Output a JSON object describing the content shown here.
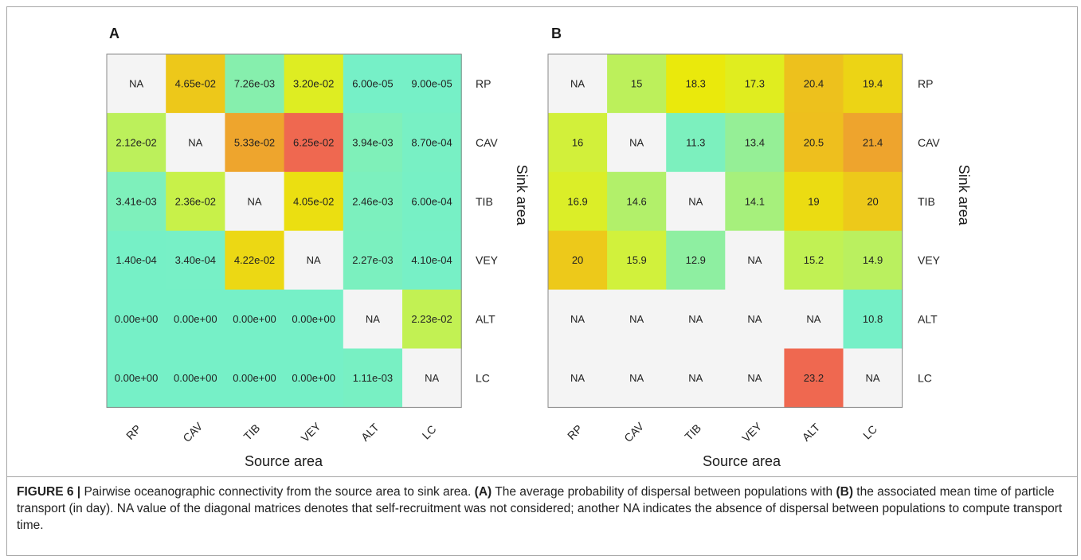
{
  "figure": {
    "caption": {
      "lead": "FIGURE 6 |",
      "t1": " Pairwise oceanographic connectivity from the source area to sink area. ",
      "b1": "(A)",
      "t2": " The average probability of dispersal between populations with ",
      "b2": "(B)",
      "t3": " the associated mean time of particle transport (in day). NA value of the diagonal matrices denotes that self-recruitment was not considered; another NA indicates the absence of dispersal between populations to compute transport time."
    }
  },
  "chart_data": [
    {
      "type": "heatmap",
      "panel": "A",
      "xlabel": "Source area",
      "ylabel": "Sink area",
      "columns": [
        "RP",
        "CAV",
        "TIB",
        "VEY",
        "ALT",
        "LC"
      ],
      "rows": [
        "RP",
        "CAV",
        "TIB",
        "VEY",
        "ALT",
        "LC"
      ],
      "labels": [
        [
          "NA",
          "4.65e-02",
          "7.26e-03",
          "3.20e-02",
          "6.00e-05",
          "9.00e-05"
        ],
        [
          "2.12e-02",
          "NA",
          "5.33e-02",
          "6.25e-02",
          "3.94e-03",
          "8.70e-04"
        ],
        [
          "3.41e-03",
          "2.36e-02",
          "NA",
          "4.05e-02",
          "2.46e-03",
          "6.00e-04"
        ],
        [
          "1.40e-04",
          "3.40e-04",
          "4.22e-02",
          "NA",
          "2.27e-03",
          "4.10e-04"
        ],
        [
          "0.00e+00",
          "0.00e+00",
          "0.00e+00",
          "0.00e+00",
          "NA",
          "2.23e-02"
        ],
        [
          "0.00e+00",
          "0.00e+00",
          "0.00e+00",
          "0.00e+00",
          "1.11e-03",
          "NA"
        ]
      ],
      "values": [
        [
          null,
          0.0465,
          0.00726,
          0.032,
          6e-05,
          9e-05
        ],
        [
          0.0212,
          null,
          0.0533,
          0.0625,
          0.00394,
          0.00087
        ],
        [
          0.00341,
          0.0236,
          null,
          0.0405,
          0.00246,
          0.0006
        ],
        [
          0.00014,
          0.00034,
          0.0422,
          null,
          0.00227,
          0.00041
        ],
        [
          0,
          0,
          0,
          0,
          null,
          0.0223
        ],
        [
          0,
          0,
          0,
          0,
          0.00111,
          null
        ]
      ],
      "value_range": [
        0,
        0.0625
      ],
      "na_color": "#f4f4f4",
      "colors": {
        "low": "#76f0c7",
        "mid_low": "#92ef9a",
        "mid": "#cff13f",
        "mid_high": "#eaea0c",
        "high_mid": "#eebb20",
        "high": "#ef6850"
      }
    },
    {
      "type": "heatmap",
      "panel": "B",
      "xlabel": "Source area",
      "ylabel": "Sink area",
      "columns": [
        "RP",
        "CAV",
        "TIB",
        "VEY",
        "ALT",
        "LC"
      ],
      "rows": [
        "RP",
        "CAV",
        "TIB",
        "VEY",
        "ALT",
        "LC"
      ],
      "labels": [
        [
          "NA",
          "15",
          "18.3",
          "17.3",
          "20.4",
          "19.4"
        ],
        [
          "16",
          "NA",
          "11.3",
          "13.4",
          "20.5",
          "21.4"
        ],
        [
          "16.9",
          "14.6",
          "NA",
          "14.1",
          "19",
          "20"
        ],
        [
          "20",
          "15.9",
          "12.9",
          "NA",
          "15.2",
          "14.9"
        ],
        [
          "NA",
          "NA",
          "NA",
          "NA",
          "NA",
          "10.8"
        ],
        [
          "NA",
          "NA",
          "NA",
          "NA",
          "23.2",
          "NA"
        ]
      ],
      "values": [
        [
          null,
          15,
          18.3,
          17.3,
          20.4,
          19.4
        ],
        [
          16,
          null,
          11.3,
          13.4,
          20.5,
          21.4
        ],
        [
          16.9,
          14.6,
          null,
          14.1,
          19,
          20
        ],
        [
          20,
          15.9,
          12.9,
          null,
          15.2,
          14.9
        ],
        [
          null,
          null,
          null,
          null,
          null,
          10.8
        ],
        [
          null,
          null,
          null,
          null,
          23.2,
          null
        ]
      ],
      "value_range": [
        10.8,
        23.2
      ],
      "na_color": "#f4f4f4",
      "colors": {
        "low": "#76f0c7",
        "mid_low": "#92ef9a",
        "mid": "#cff13f",
        "mid_high": "#eaea0c",
        "high_mid": "#eebb20",
        "high": "#ef6850"
      }
    }
  ]
}
